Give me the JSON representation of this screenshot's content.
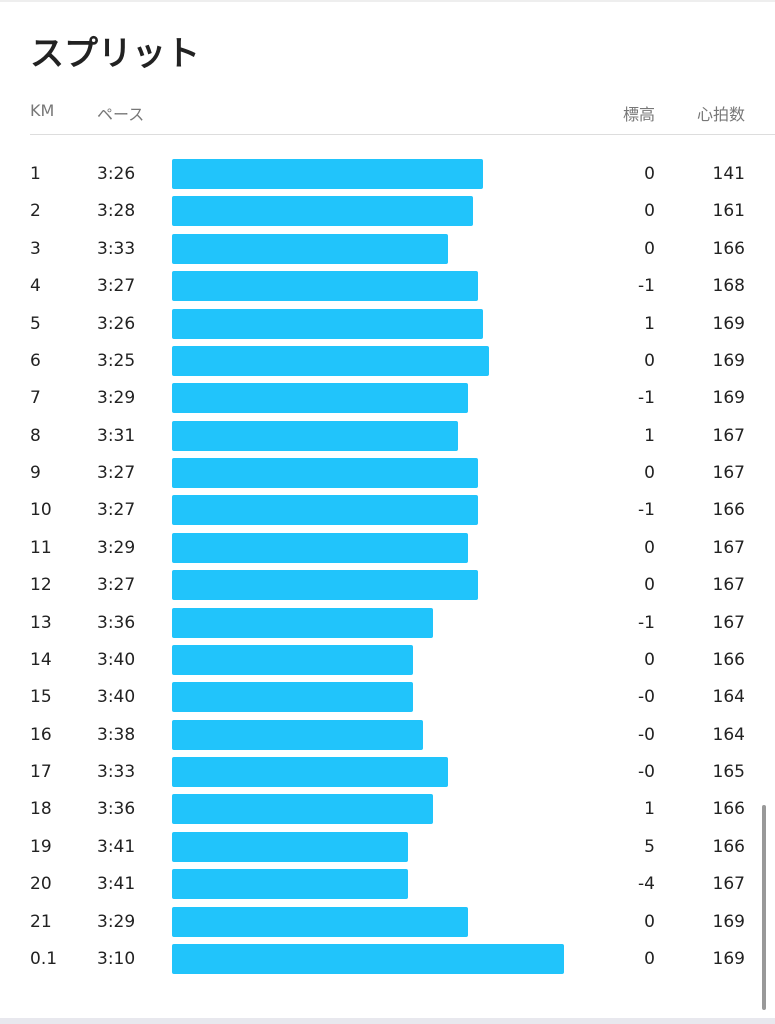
{
  "header": {
    "title": "スプリット"
  },
  "table": {
    "columns": [
      "KM",
      "ペース",
      "標高",
      "心拍数"
    ],
    "rows": [
      [
        "1",
        "3:26",
        "0",
        "141"
      ],
      [
        "2",
        "3:28",
        "0",
        "161"
      ],
      [
        "3",
        "3:33",
        "0",
        "166"
      ],
      [
        "4",
        "3:27",
        "-1",
        "168"
      ],
      [
        "5",
        "3:26",
        "1",
        "169"
      ],
      [
        "6",
        "3:25",
        "0",
        "169"
      ],
      [
        "7",
        "3:29",
        "-1",
        "169"
      ],
      [
        "8",
        "3:31",
        "1",
        "167"
      ],
      [
        "9",
        "3:27",
        "0",
        "167"
      ],
      [
        "10",
        "3:27",
        "-1",
        "166"
      ],
      [
        "11",
        "3:29",
        "0",
        "167"
      ],
      [
        "12",
        "3:27",
        "0",
        "167"
      ],
      [
        "13",
        "3:36",
        "-1",
        "167"
      ],
      [
        "14",
        "3:40",
        "0",
        "166"
      ],
      [
        "15",
        "3:40",
        "-0",
        "164"
      ],
      [
        "16",
        "3:38",
        "-0",
        "164"
      ],
      [
        "17",
        "3:33",
        "-0",
        "165"
      ],
      [
        "18",
        "3:36",
        "1",
        "166"
      ],
      [
        "19",
        "3:41",
        "5",
        "166"
      ],
      [
        "20",
        "3:41",
        "-4",
        "167"
      ],
      [
        "21",
        "3:29",
        "0",
        "169"
      ],
      [
        "0.1",
        "3:10",
        "0",
        "169"
      ]
    ]
  }
}
